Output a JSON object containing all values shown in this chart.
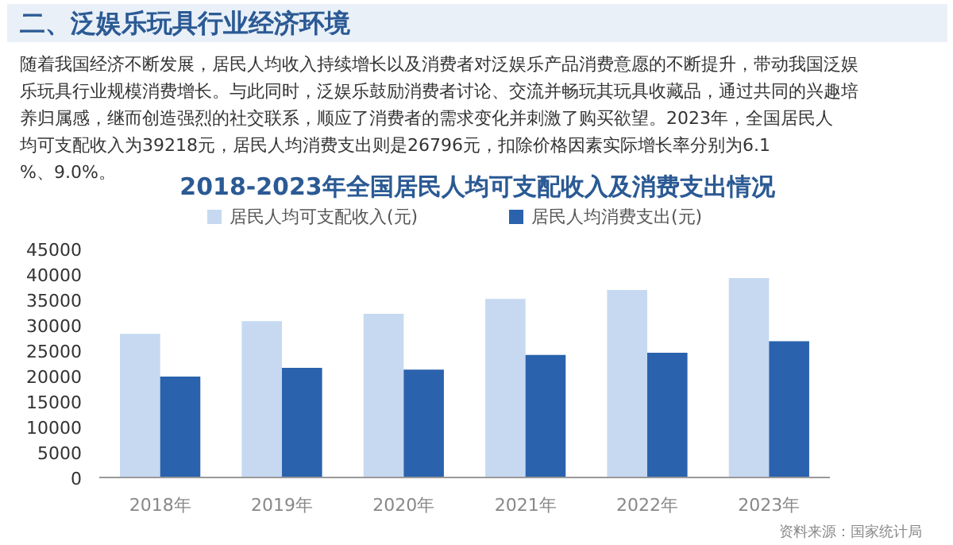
{
  "chart_data": {
    "type": "bar",
    "title": "2018-2023年全国居民人均可支配收入及消费支出情况",
    "categories": [
      "2018年",
      "2019年",
      "2020年",
      "2021年",
      "2022年",
      "2023年"
    ],
    "series": [
      {
        "name": "居民人均可支配收入(元)",
        "color": "#c6d9f1",
        "values": [
          28228,
          30733,
          32189,
          35128,
          36883,
          39218
        ]
      },
      {
        "name": "居民人均消费支出(元)",
        "color": "#2a62ad",
        "values": [
          19853,
          21559,
          21210,
          24100,
          24538,
          26796
        ]
      }
    ],
    "ylim": [
      0,
      45000
    ],
    "yticks": [
      0,
      5000,
      10000,
      15000,
      20000,
      25000,
      30000,
      35000,
      40000,
      45000
    ],
    "grid": false,
    "legend": "top",
    "annotations": [
      "二、泛娱乐玩具行业经济环境",
      "随着我国经济不断发展，居民人均收入持续增长以及消费者对泛娱乐产品消费意愿的不断提升，带动我国泛娱乐玩具行业规模消费增长。与此同时，泛娱乐鼓励消费者讨论、交流并畅玩其玩具收藏品，通过共同的兴趣培养归属感，继而创造强烈的社交联系，顺应了消费者的需求变化并刺激了购买欲望。2023年，全国居民人均可支配收入为39218元，居民人均消费支出则是26796元，扣除价格因素实际增长率分别为6.1%、9.0%。",
      "资料来源：国家统计局"
    ]
  }
}
